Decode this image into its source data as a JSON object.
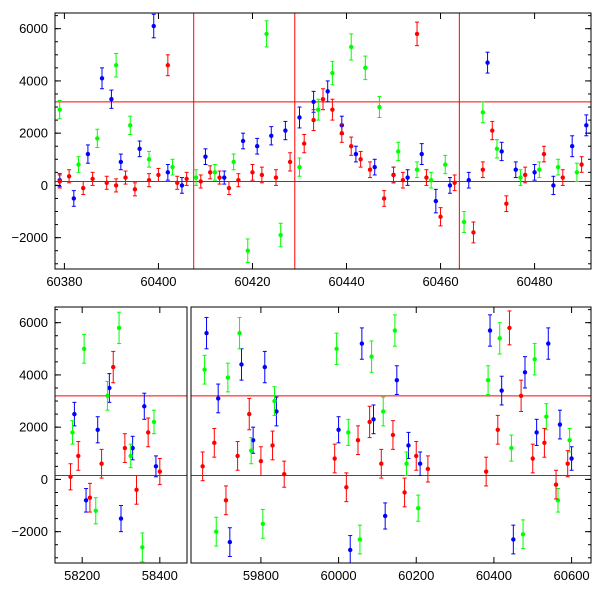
{
  "chart_data": [
    {
      "type": "scatter",
      "title": "",
      "xlabel": "",
      "ylabel": "",
      "xlim": [
        60378,
        60492
      ],
      "ylim": [
        -3200,
        6600
      ],
      "xticks": [
        60380,
        60400,
        60420,
        60440,
        60460,
        60480
      ],
      "yticks": [
        -2000,
        0,
        2000,
        4000,
        6000
      ],
      "error_bars": true,
      "reference_lines": {
        "horizontal": [
          3200,
          150
        ],
        "vertical": [
          60407.5,
          60429,
          60464
        ],
        "color": "#ff0000"
      },
      "segments": [
        {
          "x_start": 60378,
          "x_end": 60492,
          "axis_break": false
        }
      ],
      "series": [
        {
          "color": "#0000ff",
          "x": [
            60379,
            60382,
            60385,
            60388,
            60390,
            60392,
            60396,
            60399,
            60402,
            60405,
            60410,
            60414,
            60418,
            60421,
            60424,
            60427,
            60430,
            60433,
            60436,
            60439,
            60442,
            60446,
            60450,
            60453,
            60456,
            60459,
            60462,
            60466,
            60470,
            60473,
            60476,
            60480,
            60484,
            60488,
            60491
          ],
          "y": [
            200,
            -500,
            1200,
            4100,
            3300,
            900,
            1400,
            6100,
            500,
            0,
            1100,
            300,
            1700,
            1500,
            1900,
            2100,
            2600,
            3200,
            3600,
            2300,
            1200,
            700,
            400,
            300,
            1200,
            -600,
            0,
            200,
            4700,
            1300,
            600,
            500,
            0,
            1500,
            2300
          ],
          "yerr": [
            250,
            300,
            350,
            400,
            350,
            300,
            300,
            450,
            300,
            300,
            300,
            250,
            300,
            300,
            350,
            350,
            400,
            400,
            400,
            350,
            300,
            300,
            300,
            300,
            400,
            450,
            300,
            300,
            400,
            350,
            300,
            300,
            350,
            400,
            400
          ]
        },
        {
          "color": "#00ff00",
          "x": [
            60379,
            60383,
            60387,
            60391,
            60394,
            60398,
            60403,
            60408,
            60412,
            60416,
            60419,
            60423,
            60426,
            60430,
            60434,
            60437,
            60441,
            60444,
            60447,
            60451,
            60455,
            60458,
            60461,
            60465,
            60469,
            60472,
            60477,
            60481,
            60485,
            60489
          ],
          "y": [
            2900,
            800,
            1800,
            4600,
            2300,
            1000,
            700,
            300,
            500,
            900,
            -2500,
            5800,
            -1900,
            700,
            2900,
            4300,
            5300,
            4500,
            3000,
            1300,
            600,
            200,
            800,
            -1400,
            2800,
            1400,
            300,
            600,
            700,
            500
          ],
          "yerr": [
            350,
            300,
            350,
            450,
            350,
            300,
            300,
            300,
            300,
            300,
            450,
            500,
            450,
            350,
            400,
            450,
            500,
            450,
            400,
            350,
            300,
            300,
            350,
            400,
            400,
            350,
            300,
            300,
            300,
            350
          ]
        },
        {
          "color": "#ff0000",
          "x": [
            60379,
            60381,
            60384,
            60386,
            60389,
            60391,
            60393,
            60395,
            60398,
            60400,
            60402,
            60404,
            60406,
            60409,
            60411,
            60413,
            60415,
            60417,
            60420,
            60422,
            60425,
            60428,
            60431,
            60433,
            60435,
            60437,
            60439,
            60441,
            60443,
            60445,
            60448,
            60450,
            60452,
            60455,
            60457,
            60460,
            60463,
            60467,
            60469,
            60471,
            60474,
            60478,
            60482,
            60486,
            60490
          ],
          "y": [
            150,
            350,
            -100,
            250,
            100,
            0,
            300,
            -150,
            200,
            400,
            4600,
            100,
            250,
            150,
            500,
            300,
            -100,
            200,
            500,
            400,
            300,
            900,
            1600,
            2500,
            3300,
            2900,
            2000,
            1500,
            1000,
            600,
            -500,
            400,
            200,
            5800,
            300,
            -1200,
            100,
            -1800,
            600,
            2100,
            -700,
            400,
            1200,
            300,
            800
          ],
          "yerr": [
            250,
            250,
            250,
            250,
            250,
            250,
            250,
            250,
            250,
            250,
            400,
            250,
            250,
            250,
            250,
            250,
            250,
            250,
            300,
            300,
            300,
            350,
            350,
            400,
            400,
            400,
            350,
            350,
            300,
            300,
            300,
            300,
            300,
            450,
            300,
            350,
            300,
            400,
            300,
            350,
            300,
            300,
            300,
            300,
            300
          ]
        }
      ]
    },
    {
      "type": "scatter",
      "title": "",
      "xlabel": "",
      "ylabel": "",
      "xlim": [
        58130,
        60650
      ],
      "ylim": [
        -3200,
        6600
      ],
      "xticks": [
        58200,
        58400,
        59800,
        60000,
        60200,
        60400,
        60600
      ],
      "yticks": [
        -2000,
        0,
        2000,
        4000,
        6000
      ],
      "error_bars": true,
      "reference_lines": {
        "horizontal": [
          3200,
          150
        ],
        "vertical": [],
        "color": "#ff0000"
      },
      "segments": [
        {
          "x_start": 58130,
          "x_end": 58470,
          "axis_break": true
        },
        {
          "x_start": 59620,
          "x_end": 60650,
          "axis_break": false
        }
      ],
      "series": [
        {
          "color": "#0000ff",
          "x": [
            58180,
            58210,
            58240,
            58270,
            58300,
            58330,
            58360,
            58390,
            59660,
            59690,
            59720,
            59750,
            59780,
            59810,
            59840,
            60000,
            60030,
            60060,
            60090,
            60120,
            60150,
            60180,
            60210,
            60390,
            60420,
            60450,
            60480,
            60510,
            60540,
            60570,
            60600
          ],
          "y": [
            2500,
            -800,
            1900,
            3500,
            -1500,
            1200,
            2800,
            500,
            5600,
            3100,
            -2400,
            4400,
            1500,
            4300,
            2600,
            1900,
            -2700,
            5200,
            2300,
            -1400,
            3800,
            1300,
            600,
            5700,
            3400,
            -2300,
            4100,
            1800,
            5200,
            2100,
            800
          ],
          "yerr": [
            450,
            450,
            500,
            550,
            500,
            450,
            500,
            400,
            600,
            550,
            550,
            600,
            500,
            600,
            550,
            500,
            550,
            600,
            550,
            500,
            550,
            500,
            450,
            600,
            550,
            550,
            600,
            500,
            600,
            550,
            450
          ]
        },
        {
          "color": "#00ff00",
          "x": [
            58175,
            58205,
            58235,
            58265,
            58295,
            58325,
            58355,
            58385,
            59655,
            59685,
            59715,
            59745,
            59775,
            59805,
            59835,
            59995,
            60025,
            60055,
            60085,
            60115,
            60145,
            60175,
            60205,
            60385,
            60415,
            60445,
            60475,
            60505,
            60535,
            60565,
            60595
          ],
          "y": [
            1800,
            5000,
            -1200,
            3200,
            5800,
            900,
            -2600,
            2200,
            4200,
            -2000,
            3900,
            5600,
            1100,
            -1700,
            3000,
            5000,
            1800,
            -2300,
            4700,
            2600,
            5700,
            600,
            -1100,
            3800,
            5400,
            1200,
            -2100,
            4600,
            2400,
            -800,
            1500
          ],
          "yerr": [
            450,
            550,
            500,
            550,
            600,
            450,
            550,
            450,
            550,
            550,
            550,
            600,
            500,
            550,
            550,
            600,
            500,
            550,
            600,
            550,
            600,
            450,
            500,
            550,
            600,
            500,
            550,
            600,
            500,
            450,
            450
          ]
        },
        {
          "color": "#ff0000",
          "x": [
            58170,
            58190,
            58220,
            58250,
            58280,
            58310,
            58340,
            58370,
            58400,
            59650,
            59680,
            59710,
            59740,
            59770,
            59800,
            59830,
            59860,
            59990,
            60020,
            60050,
            60080,
            60110,
            60140,
            60170,
            60200,
            60230,
            60380,
            60410,
            60440,
            60470,
            60500,
            60530,
            60560,
            60590
          ],
          "y": [
            100,
            900,
            -700,
            600,
            4300,
            1200,
            -400,
            1800,
            300,
            500,
            1400,
            -800,
            900,
            2500,
            700,
            1300,
            200,
            800,
            -300,
            1500,
            2200,
            600,
            1700,
            -500,
            900,
            400,
            300,
            1900,
            5800,
            3200,
            800,
            1400,
            -200,
            600
          ],
          "yerr": [
            500,
            550,
            550,
            550,
            600,
            550,
            550,
            550,
            500,
            550,
            550,
            550,
            550,
            600,
            550,
            550,
            500,
            550,
            550,
            550,
            600,
            550,
            550,
            550,
            550,
            500,
            550,
            550,
            650,
            600,
            550,
            550,
            550,
            500
          ]
        }
      ]
    }
  ]
}
